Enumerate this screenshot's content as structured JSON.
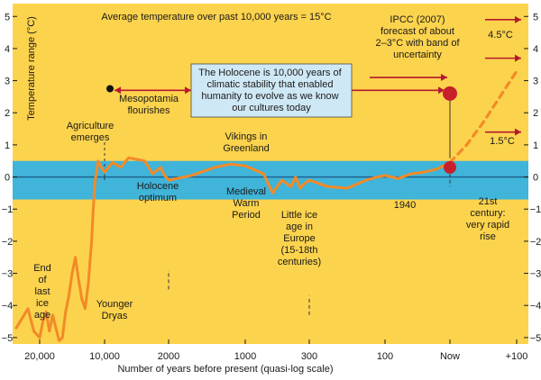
{
  "chart_data": {
    "type": "line",
    "title": "Average temperature over past 10,000 years = 15°C",
    "xlabel": "Number of years before present (quasi-log scale)",
    "ylabel": "Temperature range (°C)",
    "x_tick_labels": [
      "20,000",
      "10,000",
      "2000",
      "1000",
      "300",
      "100",
      "Now",
      "+100"
    ],
    "y_ticks": [
      -5,
      -4,
      -3,
      -2,
      -1,
      0,
      1,
      2,
      3,
      4,
      5
    ],
    "ylim": [
      -5.2,
      5.4
    ],
    "stability_band": [
      -0.7,
      0.5
    ],
    "grid": false,
    "series": [
      {
        "style": "solid",
        "x": [
          "22,000",
          "21,500",
          "21,000",
          "20,500",
          "20,000",
          "19,500",
          "19,000",
          "18,500",
          "18,000",
          "17,500",
          "17,000",
          "16,500",
          "16,000",
          "15,500",
          "15,000",
          "14,500",
          "14,000",
          "13,500",
          "13,000",
          "12,500",
          "12,000",
          "11,800",
          "11,500",
          "11,000",
          "10,500",
          "10,000",
          "9,000",
          "8,000",
          "7,000",
          "6,000",
          "5,000",
          "4,000",
          "3,000",
          "2,500",
          "2,000",
          "1,700",
          "1,400",
          "1,200",
          "1,000",
          "800",
          "700",
          "600",
          "500",
          "450",
          "400",
          "350",
          "300",
          "250",
          "200",
          "150",
          "120",
          "100",
          "80",
          "60",
          "40",
          "20",
          "0"
        ],
        "values": [
          -4.7,
          -4.4,
          -4.1,
          -4.8,
          -5.0,
          -4.5,
          -4.2,
          -4.8,
          -4.3,
          -4.7,
          -5.1,
          -5.0,
          -4.2,
          -3.7,
          -3.0,
          -2.5,
          -3.2,
          -3.8,
          -4.1,
          -3.3,
          -2.0,
          -1.2,
          -0.2,
          0.5,
          0.3,
          0.15,
          0.45,
          0.3,
          0.6,
          0.55,
          0.5,
          0.1,
          0.3,
          0.05,
          -0.1,
          0.05,
          0.3,
          0.4,
          0.35,
          0.1,
          -0.5,
          -0.1,
          -0.3,
          0.0,
          -0.35,
          -0.2,
          -0.1,
          -0.3,
          -0.35,
          -0.1,
          0.0,
          0.05,
          -0.05,
          0.1,
          0.15,
          0.25,
          0.45
        ]
      },
      {
        "style": "dashed",
        "x": [
          "0",
          "+25",
          "+50",
          "+75",
          "+100"
        ],
        "values": [
          0.45,
          1.0,
          1.7,
          2.5,
          3.3
        ]
      }
    ],
    "annotations": {
      "holocene_box": "The Holocene is 10,000 years of climatic stability that enabled humanity to evolve as we know our cultures today",
      "ipcc": "IPCC (2007) forecast of about 2–3°C with band of uncertainty",
      "high": "4.5°C",
      "low": "1.5°C",
      "mesopotamia": "Mesopotamia flourishes",
      "agriculture": "Agriculture emerges",
      "vikings": "Vikings in Greenland",
      "holocene_optimum": "Holocene optimum",
      "medieval": "Medieval Warm Period",
      "little_ice_age": "Little ice age in Europe (15-18th centuries)",
      "year_1940": "1940",
      "century21": "21st century: very rapid rise",
      "end_ice_age": "End of last ice age",
      "younger_dryas": "Younger Dryas"
    },
    "colors": {
      "background": "#fcd34d",
      "band": "#40b4d9",
      "line": "#f28a28",
      "arrow": "#b5192d",
      "dot": "#c8202a",
      "box_fill": "#cfe8f5",
      "baseline": "#1d5e8c"
    }
  }
}
